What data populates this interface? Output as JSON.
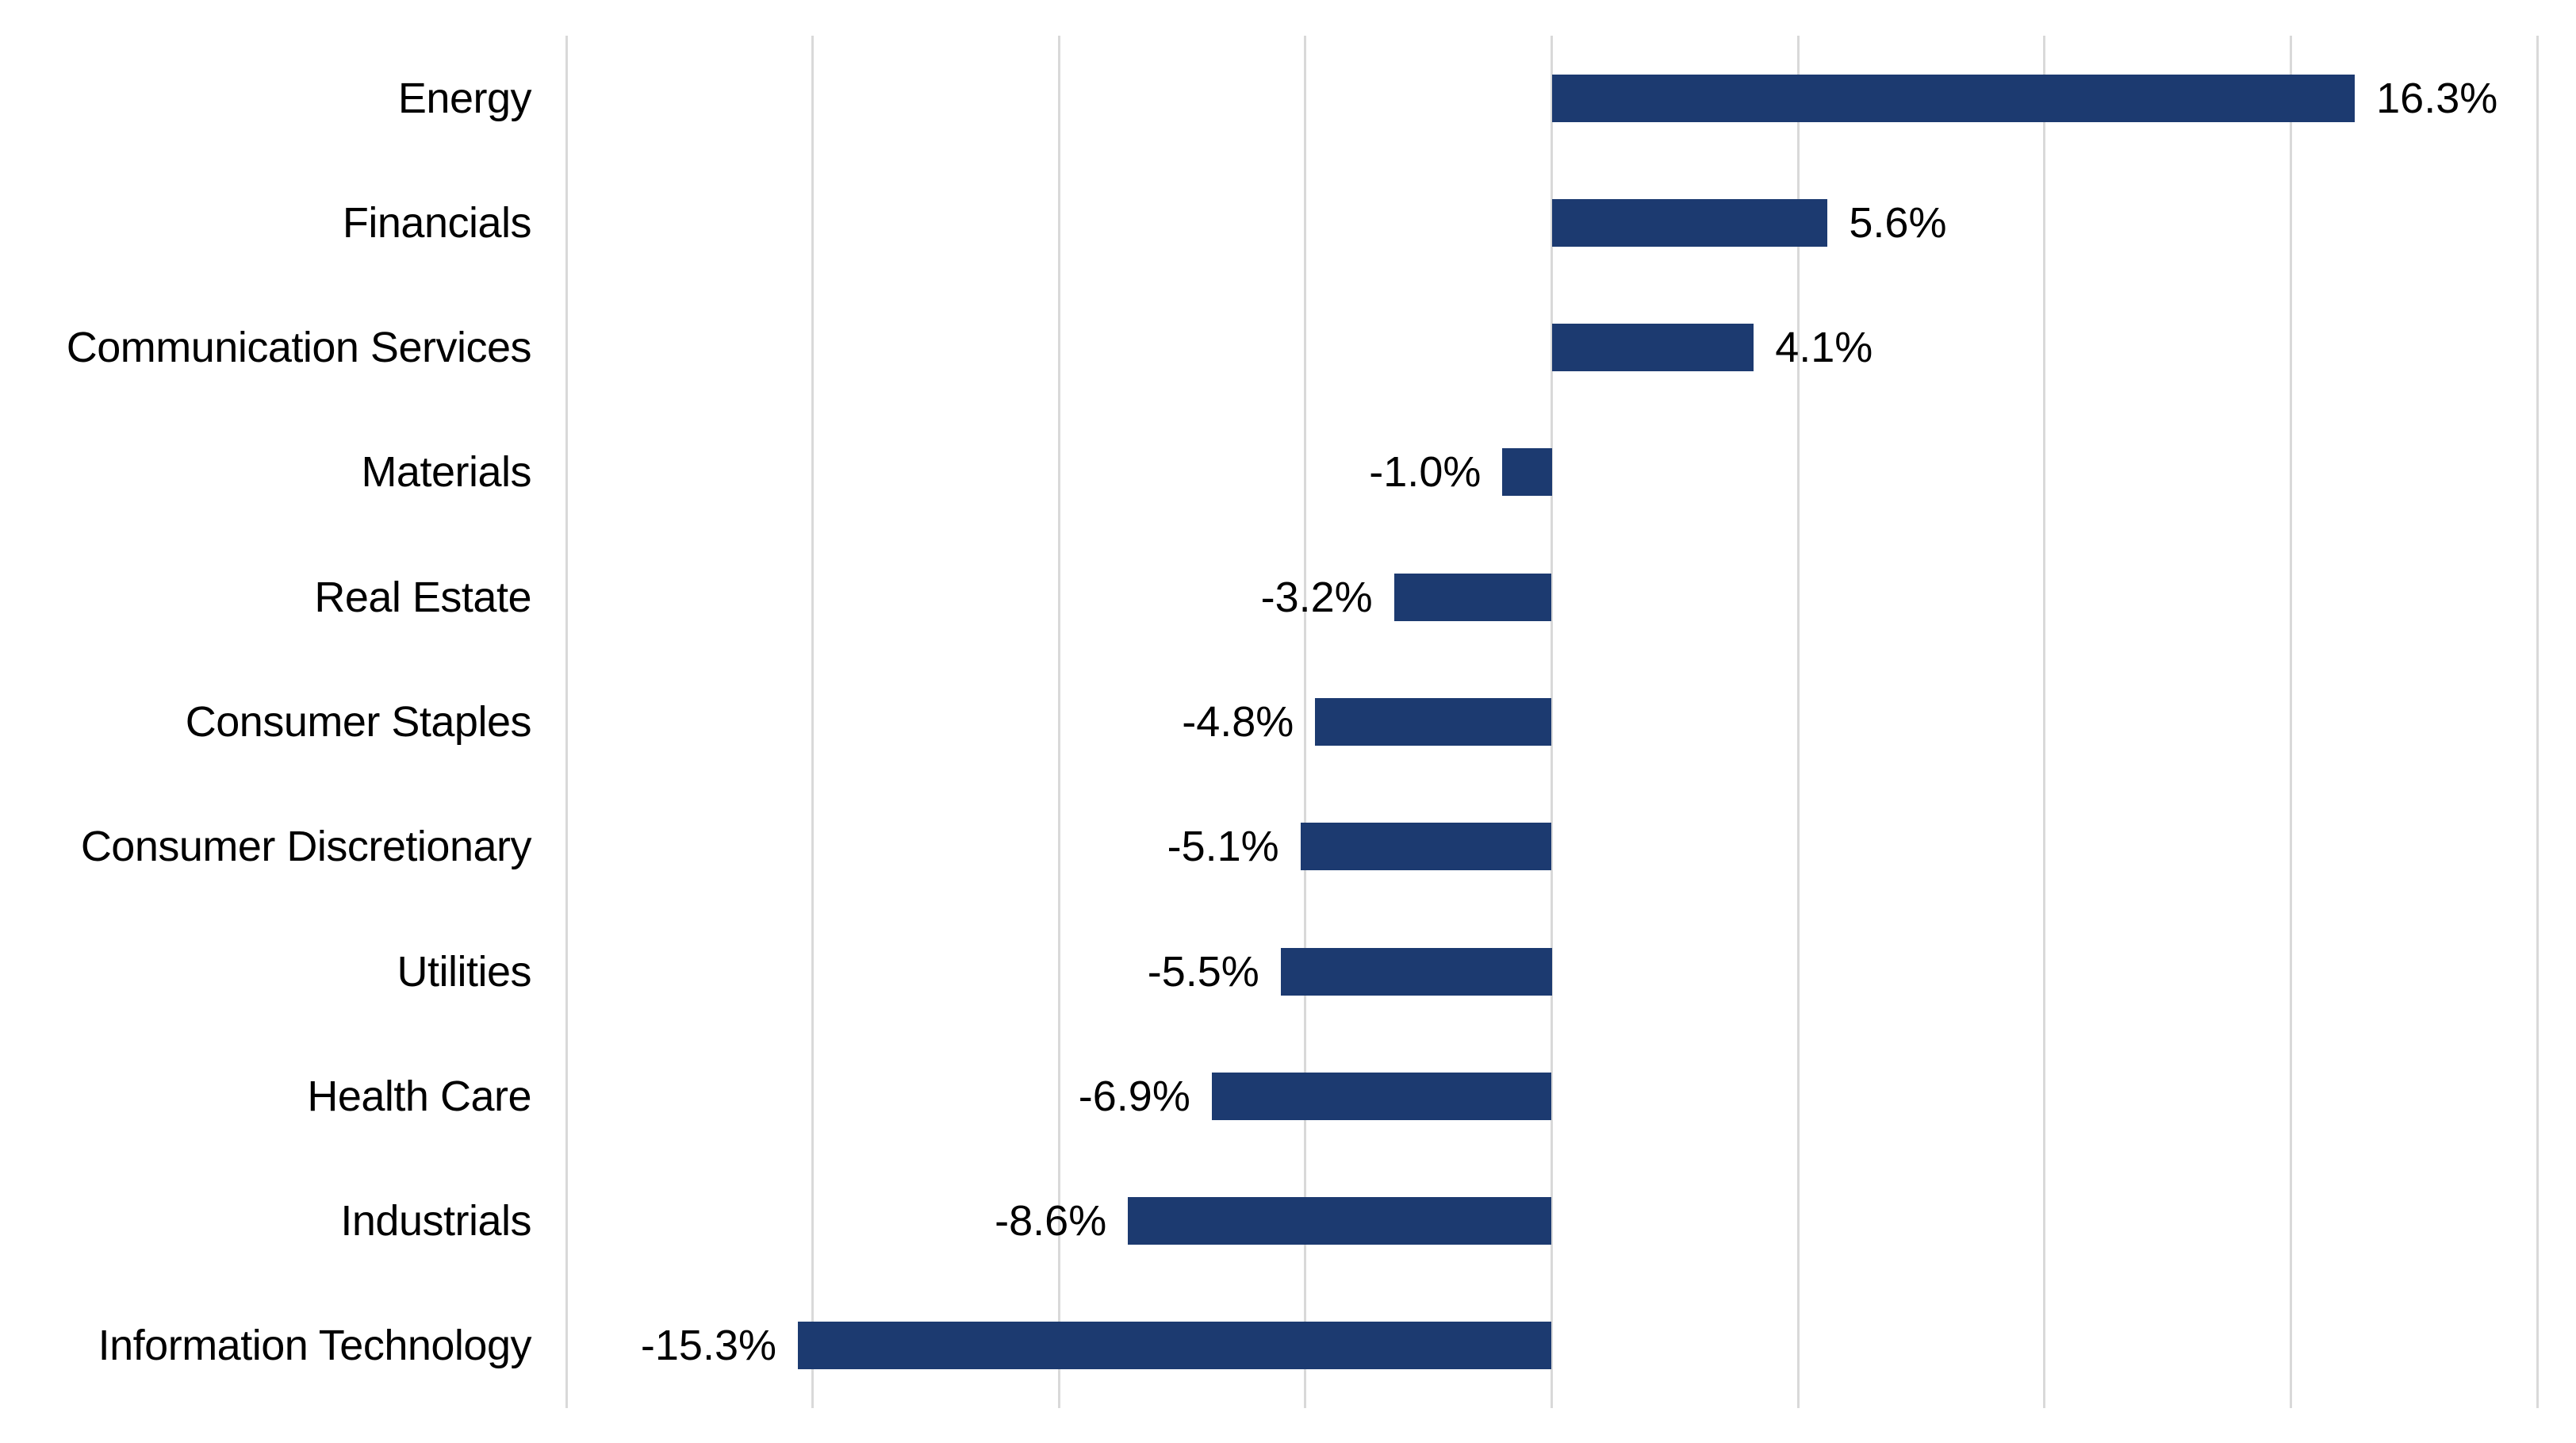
{
  "chart_data": {
    "type": "bar",
    "orientation": "horizontal",
    "title": "",
    "xlabel": "",
    "ylabel": "",
    "categories": [
      "Energy",
      "Financials",
      "Communication Services",
      "Materials",
      "Real Estate",
      "Consumer Staples",
      "Consumer Discretionary",
      "Utilities",
      "Health Care",
      "Industrials",
      "Information Technology"
    ],
    "values": [
      16.3,
      5.6,
      4.1,
      -1.0,
      -3.2,
      -4.8,
      -5.1,
      -5.5,
      -6.9,
      -8.6,
      -15.3
    ],
    "value_labels": [
      "16.3%",
      "5.6%",
      "4.1%",
      "-1.0%",
      "-3.2%",
      "-4.8%",
      "-5.1%",
      "-5.5%",
      "-6.9%",
      "-8.6%",
      "-15.3%"
    ],
    "xlim": [
      -20,
      20
    ],
    "gridline_step": 5,
    "grid": "vertical-gridlines-only",
    "axis_tick_labels": "none",
    "legend": "none",
    "bar_color": "#1C3A70",
    "gridline_color": "#D9D9D9",
    "text_color": "#000000",
    "background_color": "#FFFFFF"
  }
}
